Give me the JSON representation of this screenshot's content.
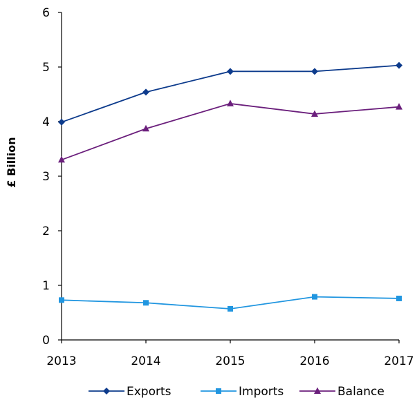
{
  "chart_data": {
    "type": "line",
    "title": "",
    "xlabel": "",
    "ylabel": "£ Billion",
    "x": [
      "2013",
      "2014",
      "2015",
      "2016",
      "2017"
    ],
    "ylim": [
      0,
      6
    ],
    "yticks": [
      "0",
      "1",
      "2",
      "3",
      "4",
      "5",
      "6"
    ],
    "grid": false,
    "legend_position": "bottom",
    "series": [
      {
        "name": "Exports",
        "color": "#0d3b8c",
        "marker": "diamond",
        "values": [
          3.99,
          4.54,
          4.92,
          4.92,
          5.03
        ]
      },
      {
        "name": "Imports",
        "color": "#2196e0",
        "marker": "square",
        "values": [
          0.73,
          0.68,
          0.57,
          0.79,
          0.76
        ]
      },
      {
        "name": "Balance",
        "color": "#6b1f7c",
        "marker": "triangle",
        "values": [
          3.3,
          3.87,
          4.33,
          4.14,
          4.27
        ]
      }
    ]
  }
}
